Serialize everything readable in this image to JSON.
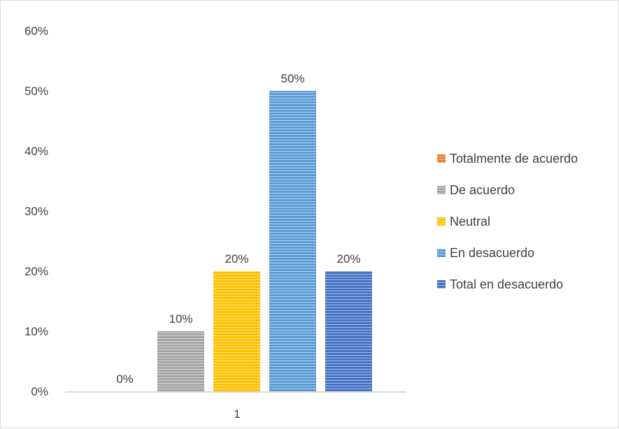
{
  "chart_data": {
    "type": "bar",
    "categories": [
      "1"
    ],
    "series": [
      {
        "name": "Totalmente de acuerdo",
        "values": [
          0
        ],
        "color": "#ed7d31",
        "label": "0%"
      },
      {
        "name": "De acuerdo",
        "values": [
          10
        ],
        "color": "#a5a5a5",
        "label": "10%"
      },
      {
        "name": "Neutral",
        "values": [
          20
        ],
        "color": "#ffc000",
        "label": "20%"
      },
      {
        "name": "En desacuerdo",
        "values": [
          50
        ],
        "color": "#5b9bd5",
        "label": "50%"
      },
      {
        "name": "Total en desacuerdo",
        "values": [
          20
        ],
        "color": "#4472c4",
        "label": "20%"
      }
    ],
    "ylim": [
      0,
      60
    ],
    "yticks": [
      0,
      10,
      20,
      30,
      40,
      50,
      60
    ],
    "ytick_labels": [
      "0%",
      "10%",
      "20%",
      "30%",
      "40%",
      "50%",
      "60%"
    ],
    "grid": false,
    "legend_position": "right",
    "bar_pattern": "horizontal-stripes",
    "title": "",
    "xlabel": "",
    "ylabel": ""
  }
}
